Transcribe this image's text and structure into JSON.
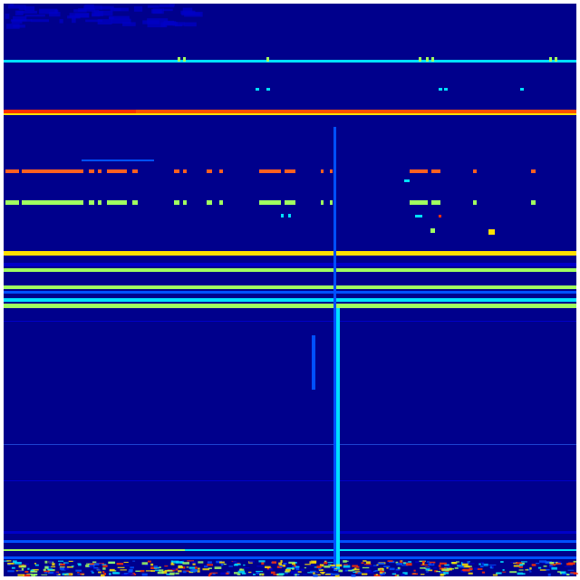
{
  "image": {
    "kind": "heatmap",
    "colormap": "jet",
    "colors": {
      "background": "#00008c",
      "low": "#0000c8",
      "mid_low": "#0050ff",
      "mid": "#00e0ff",
      "mid_high": "#a0ff60",
      "high": "#ffe000",
      "peak": "#ff3000"
    }
  }
}
